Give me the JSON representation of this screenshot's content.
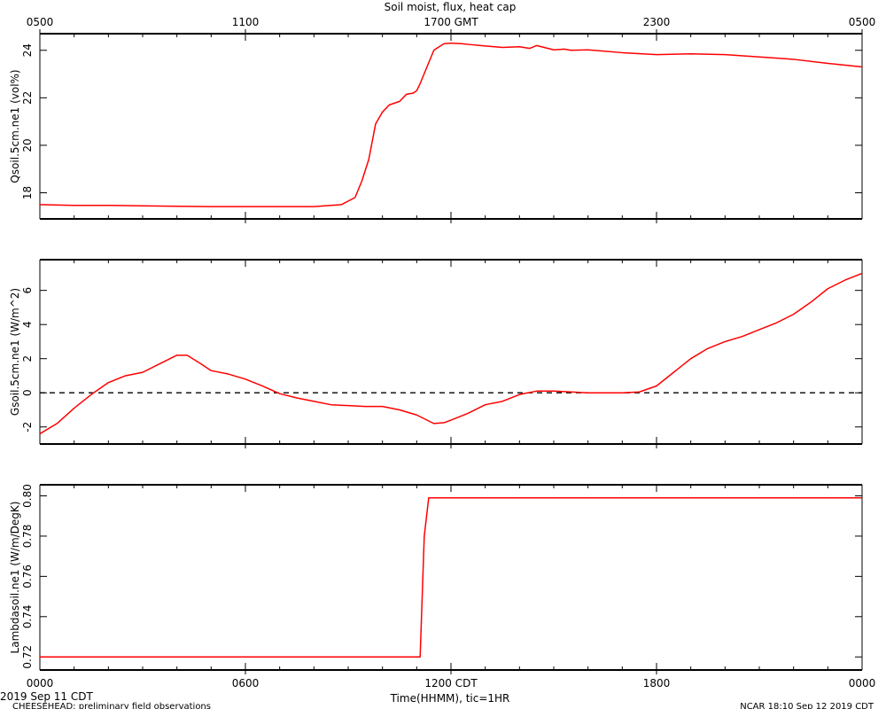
{
  "chart_title": "Soil moist, flux, heat cap",
  "top_axis": {
    "labels": [
      "0500",
      "1100",
      "1700 GMT",
      "2300",
      "0500"
    ],
    "hours": [
      0,
      6,
      12,
      18,
      24
    ]
  },
  "bottom_axis": {
    "labels": [
      "0000",
      "0600",
      "1200 CDT",
      "1800",
      "0000"
    ],
    "hours": [
      0,
      6,
      12,
      18,
      24
    ],
    "title": "Time(HHMM), tic=1HR"
  },
  "footer": {
    "date_left": "2019 Sep 11 CDT",
    "project": "CHEESEHEAD: preliminary field observations",
    "stamp": "NCAR 18:10 Sep 12 2019 CDT"
  },
  "colors": {
    "series": "#ff0000",
    "axis": "#000000",
    "zero_line": "#000000"
  },
  "chart_data": [
    {
      "type": "line",
      "ylabel": "Qsoil.5cm.ne1 (vol%)",
      "xlim": [
        0,
        24
      ],
      "ylim": [
        16.9,
        24.7
      ],
      "yticks": [
        18,
        20,
        22,
        24
      ],
      "grid": false,
      "series": [
        {
          "x": [
            0,
            1,
            2,
            3,
            4,
            5,
            6,
            7,
            8,
            8.8,
            9.2,
            9.4,
            9.6,
            9.8,
            10.0,
            10.2,
            10.5,
            10.7,
            10.9,
            11.0,
            11.1,
            11.3,
            11.5,
            11.6,
            11.8,
            12.0,
            12.3,
            12.5,
            13,
            13.5,
            14,
            14.3,
            14.5,
            15,
            15.3,
            15.5,
            16,
            17,
            18,
            19,
            20,
            21,
            22,
            23,
            24
          ],
          "y": [
            17.5,
            17.47,
            17.47,
            17.45,
            17.43,
            17.42,
            17.42,
            17.42,
            17.42,
            17.5,
            17.8,
            18.5,
            19.4,
            20.9,
            21.4,
            21.7,
            21.85,
            22.15,
            22.2,
            22.3,
            22.6,
            23.3,
            24.0,
            24.1,
            24.28,
            24.3,
            24.28,
            24.25,
            24.18,
            24.12,
            24.15,
            24.08,
            24.2,
            24.02,
            24.05,
            24.0,
            24.02,
            23.9,
            23.82,
            23.85,
            23.82,
            23.72,
            23.62,
            23.45,
            23.3
          ]
        }
      ]
    },
    {
      "type": "line",
      "ylabel": "Gsoil.5cm.ne1 (W/m^2)",
      "xlim": [
        0,
        24
      ],
      "ylim": [
        -3.0,
        7.8
      ],
      "yticks": [
        -2,
        0,
        2,
        4,
        6
      ],
      "reference_line": {
        "y": 0,
        "style": "dashed"
      },
      "grid": false,
      "series": [
        {
          "x": [
            0,
            0.5,
            1,
            1.5,
            2,
            2.5,
            3,
            3.5,
            4,
            4.3,
            4.7,
            5,
            5.5,
            6,
            6.5,
            7,
            7.5,
            8,
            8.5,
            9,
            9.5,
            10,
            10.5,
            11,
            11.5,
            11.8,
            12,
            12.5,
            13,
            13.5,
            14,
            14.5,
            15,
            15.5,
            16,
            16.5,
            17,
            17.5,
            18,
            18.5,
            19,
            19.5,
            20,
            20.5,
            21,
            21.5,
            22,
            22.5,
            23,
            23.5,
            24
          ],
          "y": [
            -2.4,
            -1.8,
            -0.9,
            -0.1,
            0.6,
            1.0,
            1.2,
            1.7,
            2.2,
            2.2,
            1.7,
            1.3,
            1.1,
            0.8,
            0.4,
            -0.05,
            -0.3,
            -0.5,
            -0.7,
            -0.75,
            -0.8,
            -0.8,
            -1.0,
            -1.3,
            -1.8,
            -1.75,
            -1.6,
            -1.2,
            -0.7,
            -0.5,
            -0.1,
            0.1,
            0.1,
            0.05,
            0.0,
            0.0,
            0.0,
            0.05,
            0.4,
            1.2,
            2.0,
            2.6,
            3.0,
            3.3,
            3.7,
            4.1,
            4.6,
            5.3,
            6.1,
            6.6,
            7.0
          ]
        }
      ]
    },
    {
      "type": "line",
      "ylabel": "Lambdasoil.ne1 (W/m/DegK)",
      "xlim": [
        0,
        24
      ],
      "ylim": [
        0.7135,
        0.8055
      ],
      "yticks": [
        0.72,
        0.74,
        0.76,
        0.78,
        0.8
      ],
      "ytick_labels": [
        "0.72",
        "0.74",
        "0.76",
        "0.78",
        "0.80"
      ],
      "grid": false,
      "series": [
        {
          "x": [
            0,
            11.1,
            11.22,
            11.35,
            24
          ],
          "y": [
            0.72,
            0.72,
            0.78,
            0.799,
            0.799
          ]
        }
      ]
    }
  ]
}
